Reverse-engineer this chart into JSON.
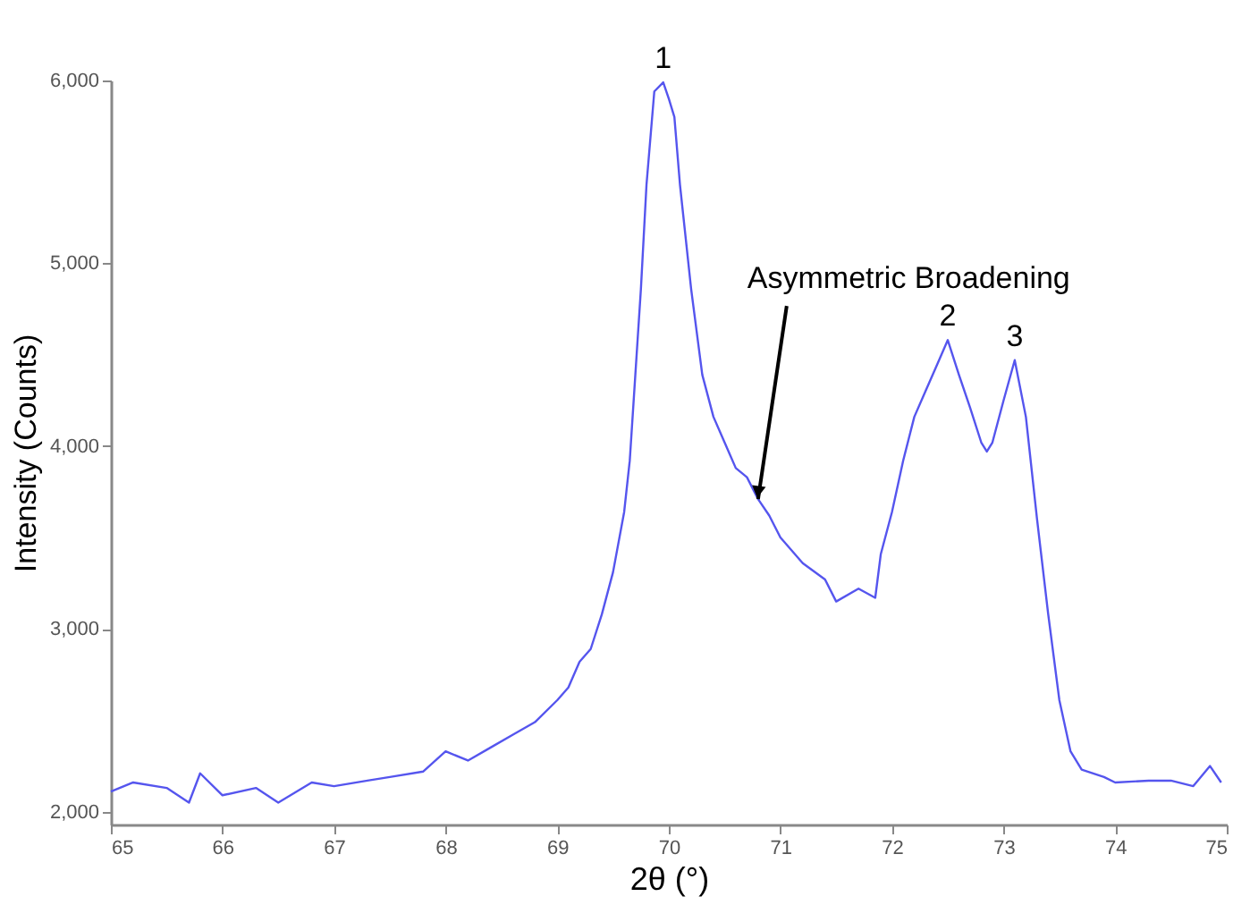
{
  "chart_data": {
    "type": "line",
    "xlabel": "2θ (°)",
    "ylabel": "Intensity (Counts)",
    "x": [
      65.0,
      65.2,
      65.5,
      65.7,
      65.8,
      66.0,
      66.3,
      66.5,
      66.8,
      67.0,
      67.3,
      67.5,
      67.8,
      68.0,
      68.2,
      68.4,
      68.6,
      68.8,
      69.0,
      69.1,
      69.2,
      69.3,
      69.4,
      69.5,
      69.6,
      69.65,
      69.7,
      69.75,
      69.8,
      69.87,
      69.95,
      70.0,
      70.05,
      70.1,
      70.2,
      70.3,
      70.4,
      70.5,
      70.6,
      70.7,
      70.8,
      70.9,
      71.0,
      71.2,
      71.4,
      71.5,
      71.7,
      71.85,
      71.9,
      72.0,
      72.1,
      72.2,
      72.3,
      72.4,
      72.5,
      72.6,
      72.7,
      72.8,
      72.85,
      72.9,
      73.0,
      73.1,
      73.2,
      73.3,
      73.4,
      73.5,
      73.6,
      73.7,
      73.9,
      74.0,
      74.3,
      74.5,
      74.7,
      74.85,
      74.95
    ],
    "series": [
      {
        "color": "#5555ee",
        "values": [
          2110,
          2160,
          2130,
          2050,
          2210,
          2090,
          2130,
          2050,
          2160,
          2140,
          2170,
          2190,
          2220,
          2330,
          2280,
          2350,
          2420,
          2490,
          2610,
          2680,
          2820,
          2890,
          3080,
          3310,
          3640,
          3920,
          4390,
          4860,
          5430,
          5940,
          5990,
          5900,
          5800,
          5430,
          4860,
          4390,
          4160,
          4020,
          3880,
          3830,
          3710,
          3620,
          3500,
          3360,
          3270,
          3150,
          3220,
          3170,
          3410,
          3640,
          3920,
          4160,
          4300,
          4440,
          4580,
          4390,
          4210,
          4020,
          3970,
          4020,
          4250,
          4470,
          4160,
          3600,
          3080,
          2610,
          2330,
          2230,
          2190,
          2160,
          2170,
          2170,
          2140,
          2250,
          2160
        ]
      }
    ],
    "xlim": [
      65,
      75
    ],
    "xticks": [
      65,
      66,
      67,
      68,
      69,
      70,
      71,
      72,
      73,
      74,
      75
    ],
    "ylim": [
      1930,
      6000
    ],
    "yticks": [
      {
        "value": 2000,
        "label": "2,000"
      },
      {
        "value": 3000,
        "label": "3,000"
      },
      {
        "value": 4000,
        "label": "4,000"
      },
      {
        "value": 5000,
        "label": "5,000"
      },
      {
        "value": 6000,
        "label": "6,000"
      }
    ],
    "grid": false,
    "marker": "none",
    "line_style": "solid",
    "annotations": [
      {
        "text": "1",
        "x": 69.95,
        "y": 5990
      },
      {
        "text": "2",
        "x": 72.5,
        "y": 4580
      },
      {
        "text": "3",
        "x": 73.1,
        "y": 4470
      },
      {
        "text": "Asymmetric Broadening",
        "x": 70.8,
        "y": 3710
      }
    ]
  }
}
